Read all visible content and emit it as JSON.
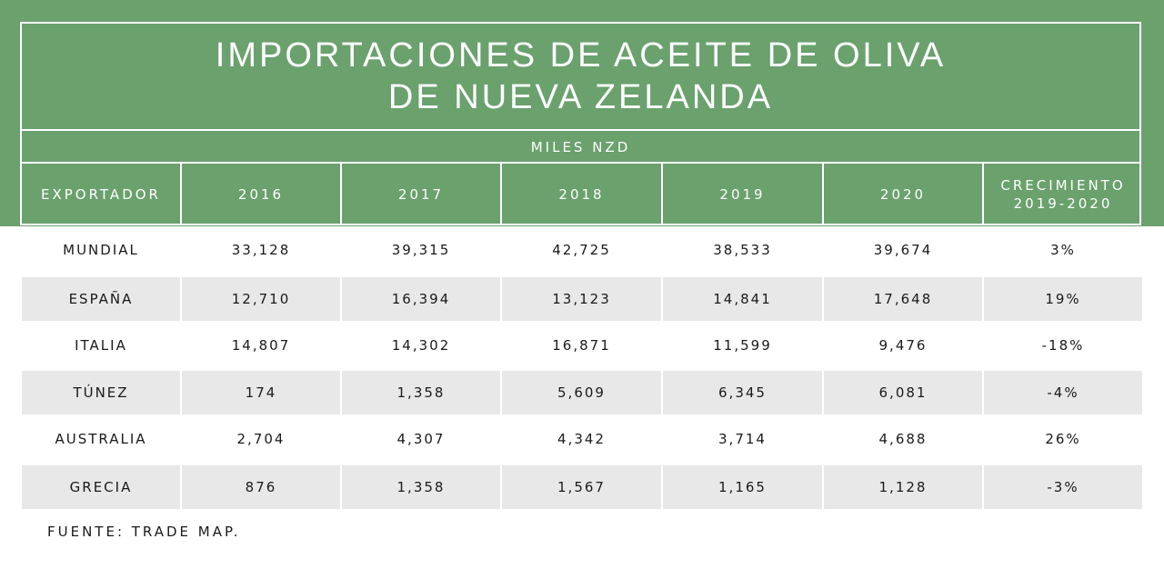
{
  "title_line1": "IMPORTACIONES DE ACEITE DE OLIVA",
  "title_line2": "DE NUEVA ZELANDA",
  "units": "MILES NZD",
  "source": "FUENTE: TRADE MAP.",
  "colors": {
    "header_green": "#6aa16d",
    "row_shade": "#e8e8e8"
  },
  "chart_data": {
    "type": "table",
    "columns": [
      "EXPORTADOR",
      "2016",
      "2017",
      "2018",
      "2019",
      "2020",
      "CRECIMIENTO 2019-2020"
    ],
    "growth_header_line1": "CRECIMIENTO",
    "growth_header_line2": "2019-2020",
    "rows": [
      [
        "MUNDIAL",
        "33,128",
        "39,315",
        "42,725",
        "38,533",
        "39,674",
        "3%"
      ],
      [
        "ESPAÑA",
        "12,710",
        "16,394",
        "13,123",
        "14,841",
        "17,648",
        "19%"
      ],
      [
        "ITALIA",
        "14,807",
        "14,302",
        "16,871",
        "11,599",
        "9,476",
        "-18%"
      ],
      [
        "TÚNEZ",
        "174",
        "1,358",
        "5,609",
        "6,345",
        "6,081",
        "-4%"
      ],
      [
        "AUSTRALIA",
        "2,704",
        "4,307",
        "4,342",
        "3,714",
        "4,688",
        "26%"
      ],
      [
        "GRECIA",
        "876",
        "1,358",
        "1,567",
        "1,165",
        "1,128",
        "-3%"
      ]
    ]
  }
}
